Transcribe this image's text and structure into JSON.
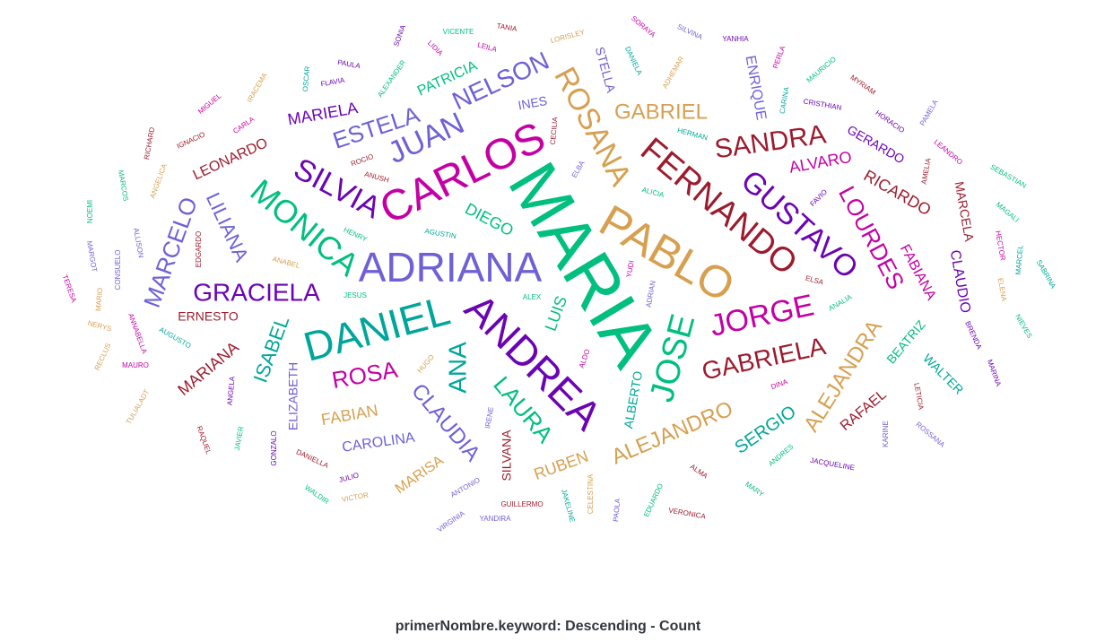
{
  "caption": "primerNombre.keyword: Descending - Count",
  "colors": {
    "green": "#00bf7f",
    "purple": "#7060d6",
    "orange": "#d6a050",
    "darkviolet": "#6b04b3",
    "teal": "#00a69b",
    "red": "#9c1c2e",
    "magenta": "#c400a4",
    "caption": "#343741"
  },
  "chart_data": {
    "type": "wordcloud",
    "field": "primerNombre.keyword",
    "order": "Descending - Count",
    "words": [
      {
        "text": "MARIA",
        "rank": 1,
        "color": "green"
      },
      {
        "text": "ADRIANA",
        "rank": 2,
        "color": "purple"
      },
      {
        "text": "PABLO",
        "rank": 3,
        "color": "orange"
      },
      {
        "text": "ANDREA",
        "rank": 4,
        "color": "darkviolet"
      },
      {
        "text": "DANIEL",
        "rank": 5,
        "color": "teal"
      },
      {
        "text": "CARLOS",
        "rank": 6,
        "color": "magenta"
      },
      {
        "text": "FERNANDO",
        "rank": 7,
        "color": "red"
      },
      {
        "text": "ROSANA",
        "rank": 8,
        "color": "orange"
      },
      {
        "text": "GUSTAVO",
        "rank": 9,
        "color": "darkviolet"
      },
      {
        "text": "MONICA",
        "rank": 10,
        "color": "green"
      },
      {
        "text": "JOSE",
        "rank": 11,
        "color": "green"
      },
      {
        "text": "SILVIA",
        "rank": 12,
        "color": "darkviolet"
      },
      {
        "text": "JUAN",
        "rank": 13,
        "color": "purple"
      },
      {
        "text": "JORGE",
        "rank": 14,
        "color": "magenta"
      },
      {
        "text": "GABRIELA",
        "rank": 15,
        "color": "red"
      },
      {
        "text": "LOURDES",
        "rank": 16,
        "color": "magenta"
      },
      {
        "text": "NELSON",
        "rank": 17,
        "color": "purple"
      },
      {
        "text": "ALEJANDRO",
        "rank": 18,
        "color": "orange"
      },
      {
        "text": "ALEJANDRA",
        "rank": 19,
        "color": "orange"
      },
      {
        "text": "SANDRA",
        "rank": 20,
        "color": "red"
      },
      {
        "text": "ESTELA",
        "rank": 21,
        "color": "purple"
      },
      {
        "text": "GRACIELA",
        "rank": 22,
        "color": "darkviolet"
      },
      {
        "text": "MARCELO",
        "rank": 23,
        "color": "purple"
      },
      {
        "text": "CLAUDIA",
        "rank": 24,
        "color": "purple"
      },
      {
        "text": "LAURA",
        "rank": 25,
        "color": "green"
      },
      {
        "text": "ROSA",
        "rank": 26,
        "color": "magenta"
      },
      {
        "text": "ANA",
        "rank": 27,
        "color": "teal"
      },
      {
        "text": "GABRIEL",
        "rank": 28,
        "color": "orange"
      },
      {
        "text": "LILIANA",
        "rank": 29,
        "color": "purple"
      },
      {
        "text": "ISABEL",
        "rank": 30,
        "color": "teal"
      },
      {
        "text": "MARIANA",
        "rank": 31,
        "color": "red"
      },
      {
        "text": "MARIELA",
        "rank": 32,
        "color": "darkviolet"
      },
      {
        "text": "PATRICIA",
        "rank": 33,
        "color": "green"
      },
      {
        "text": "RICARDO",
        "rank": 34,
        "color": "red"
      },
      {
        "text": "FABIANA",
        "rank": 35,
        "color": "magenta"
      },
      {
        "text": "MARCELA",
        "rank": 36,
        "color": "red"
      },
      {
        "text": "CLAUDIO",
        "rank": 37,
        "color": "darkviolet"
      },
      {
        "text": "ENRIQUE",
        "rank": 38,
        "color": "purple"
      },
      {
        "text": "STELLA",
        "rank": 39,
        "color": "purple"
      },
      {
        "text": "SERGIO",
        "rank": 40,
        "color": "teal"
      },
      {
        "text": "ALVARO",
        "rank": 41,
        "color": "magenta"
      },
      {
        "text": "GERARDO",
        "rank": 42,
        "color": "darkviolet"
      },
      {
        "text": "DIEGO",
        "rank": 43,
        "color": "green"
      },
      {
        "text": "LEONARDO",
        "rank": 44,
        "color": "red"
      },
      {
        "text": "FABIAN",
        "rank": 45,
        "color": "orange"
      },
      {
        "text": "RUBEN",
        "rank": 46,
        "color": "orange"
      },
      {
        "text": "CAROLINA",
        "rank": 47,
        "color": "purple"
      },
      {
        "text": "ELIZABETH",
        "rank": 48,
        "color": "purple"
      },
      {
        "text": "ALBERTO",
        "rank": 49,
        "color": "teal"
      },
      {
        "text": "MARISA",
        "rank": 50,
        "color": "orange"
      },
      {
        "text": "RAFAEL",
        "rank": 51,
        "color": "red"
      },
      {
        "text": "BEATRIZ",
        "rank": 52,
        "color": "green"
      },
      {
        "text": "WALTER",
        "rank": 53,
        "color": "teal"
      },
      {
        "text": "ERNESTO",
        "rank": 54,
        "color": "red"
      },
      {
        "text": "SILVANA",
        "rank": 55,
        "color": "red"
      },
      {
        "text": "LUIS",
        "rank": 56,
        "color": "green"
      },
      {
        "text": "INES",
        "rank": 57,
        "color": "purple"
      },
      {
        "text": "SONIA",
        "rank": 58,
        "color": "darkviolet"
      },
      {
        "text": "VICENTE",
        "rank": 59,
        "color": "green"
      },
      {
        "text": "TANIA",
        "rank": 60,
        "color": "red"
      },
      {
        "text": "SORAYA",
        "rank": 61,
        "color": "magenta"
      },
      {
        "text": "SILVINA",
        "rank": 62,
        "color": "purple"
      },
      {
        "text": "YANHIA",
        "rank": 63,
        "color": "darkviolet"
      },
      {
        "text": "LIDIA",
        "rank": 64,
        "color": "magenta"
      },
      {
        "text": "LEILA",
        "rank": 65,
        "color": "magenta"
      },
      {
        "text": "LORISLEY",
        "rank": 66,
        "color": "orange"
      },
      {
        "text": "DANIELA",
        "rank": 67,
        "color": "teal"
      },
      {
        "text": "ADHEMAR",
        "rank": 68,
        "color": "orange"
      },
      {
        "text": "PERLA",
        "rank": 69,
        "color": "magenta"
      },
      {
        "text": "PAULA",
        "rank": 70,
        "color": "darkviolet"
      },
      {
        "text": "OSCAR",
        "rank": 71,
        "color": "teal"
      },
      {
        "text": "ALEXANDER",
        "rank": 72,
        "color": "green"
      },
      {
        "text": "FLAVIA",
        "rank": 73,
        "color": "darkviolet"
      },
      {
        "text": "MAURICIO",
        "rank": 74,
        "color": "green"
      },
      {
        "text": "CARINA",
        "rank": 75,
        "color": "teal"
      },
      {
        "text": "MYRIAM",
        "rank": 76,
        "color": "red"
      },
      {
        "text": "IRACEMA",
        "rank": 77,
        "color": "orange"
      },
      {
        "text": "MIGUEL",
        "rank": 78,
        "color": "magenta"
      },
      {
        "text": "CRISTHIAN",
        "rank": 79,
        "color": "darkviolet"
      },
      {
        "text": "HORACIO",
        "rank": 80,
        "color": "darkviolet"
      },
      {
        "text": "PAMELA",
        "rank": 81,
        "color": "purple"
      },
      {
        "text": "CECILIA",
        "rank": 82,
        "color": "red"
      },
      {
        "text": "HERMAN",
        "rank": 83,
        "color": "teal"
      },
      {
        "text": "CARLA",
        "rank": 84,
        "color": "magenta"
      },
      {
        "text": "RICHARD",
        "rank": 85,
        "color": "red"
      },
      {
        "text": "IGNACIO",
        "rank": 86,
        "color": "red"
      },
      {
        "text": "LEANDRO",
        "rank": 87,
        "color": "magenta"
      },
      {
        "text": "AMELIA",
        "rank": 88,
        "color": "red"
      },
      {
        "text": "SEBASTIAN",
        "rank": 89,
        "color": "green"
      },
      {
        "text": "ROCIO",
        "rank": 90,
        "color": "red"
      },
      {
        "text": "ANUSH",
        "rank": 91,
        "color": "red"
      },
      {
        "text": "ELBA",
        "rank": 92,
        "color": "purple"
      },
      {
        "text": "ALICIA",
        "rank": 93,
        "color": "green"
      },
      {
        "text": "FAVIO",
        "rank": 94,
        "color": "darkviolet"
      },
      {
        "text": "MARCOS",
        "rank": 95,
        "color": "green"
      },
      {
        "text": "ANGELICA",
        "rank": 96,
        "color": "orange"
      },
      {
        "text": "NOEMI",
        "rank": 97,
        "color": "green"
      },
      {
        "text": "MAGALI",
        "rank": 98,
        "color": "green"
      },
      {
        "text": "HENRY",
        "rank": 99,
        "color": "green"
      },
      {
        "text": "AGUSTIN",
        "rank": 100,
        "color": "teal"
      },
      {
        "text": "HECTOR",
        "rank": 101,
        "color": "magenta"
      },
      {
        "text": "MARCEL",
        "rank": 102,
        "color": "teal"
      },
      {
        "text": "EDGARDO",
        "rank": 103,
        "color": "red"
      },
      {
        "text": "ALLISON",
        "rank": 104,
        "color": "purple"
      },
      {
        "text": "MARGOT",
        "rank": 105,
        "color": "purple"
      },
      {
        "text": "CONSUELO",
        "rank": 106,
        "color": "purple"
      },
      {
        "text": "ANABEL",
        "rank": 107,
        "color": "orange"
      },
      {
        "text": "YUDI",
        "rank": 108,
        "color": "magenta"
      },
      {
        "text": "SABRINA",
        "rank": 109,
        "color": "teal"
      },
      {
        "text": "TERESA",
        "rank": 110,
        "color": "magenta"
      },
      {
        "text": "ELSA",
        "rank": 111,
        "color": "red"
      },
      {
        "text": "ELENA",
        "rank": 112,
        "color": "orange"
      },
      {
        "text": "JESUS",
        "rank": 113,
        "color": "green"
      },
      {
        "text": "ALEX",
        "rank": 114,
        "color": "green"
      },
      {
        "text": "ADRIAN",
        "rank": 115,
        "color": "purple"
      },
      {
        "text": "ANALIA",
        "rank": 116,
        "color": "green"
      },
      {
        "text": "MARIO",
        "rank": 117,
        "color": "orange"
      },
      {
        "text": "ANNABELLA",
        "rank": 118,
        "color": "magenta"
      },
      {
        "text": "NERYS",
        "rank": 119,
        "color": "orange"
      },
      {
        "text": "NIEVES",
        "rank": 120,
        "color": "green"
      },
      {
        "text": "BRENDA",
        "rank": 121,
        "color": "darkviolet"
      },
      {
        "text": "AUGUSTO",
        "rank": 122,
        "color": "teal"
      },
      {
        "text": "RECLUS",
        "rank": 123,
        "color": "orange"
      },
      {
        "text": "MAURO",
        "rank": 124,
        "color": "magenta"
      },
      {
        "text": "ALDO",
        "rank": 125,
        "color": "magenta"
      },
      {
        "text": "HUGO",
        "rank": 126,
        "color": "orange"
      },
      {
        "text": "MARINA",
        "rank": 127,
        "color": "darkviolet"
      },
      {
        "text": "DINA",
        "rank": 128,
        "color": "magenta"
      },
      {
        "text": "ANGELA",
        "rank": 129,
        "color": "darkviolet"
      },
      {
        "text": "LETICIA",
        "rank": 130,
        "color": "red"
      },
      {
        "text": "TULIALADT",
        "rank": 131,
        "color": "orange"
      },
      {
        "text": "IRENE",
        "rank": 132,
        "color": "purple"
      },
      {
        "text": "ROSSANA",
        "rank": 133,
        "color": "purple"
      },
      {
        "text": "KARINE",
        "rank": 134,
        "color": "purple"
      },
      {
        "text": "RAQUEL",
        "rank": 135,
        "color": "red"
      },
      {
        "text": "JAVIER",
        "rank": 136,
        "color": "green"
      },
      {
        "text": "GONZALO",
        "rank": 137,
        "color": "darkviolet"
      },
      {
        "text": "ANDRES",
        "rank": 138,
        "color": "green"
      },
      {
        "text": "JACQUELINE",
        "rank": 139,
        "color": "darkviolet"
      },
      {
        "text": "DANIELLA",
        "rank": 140,
        "color": "red"
      },
      {
        "text": "ALMA",
        "rank": 141,
        "color": "red"
      },
      {
        "text": "JULIO",
        "rank": 142,
        "color": "darkviolet"
      },
      {
        "text": "ANTONIO",
        "rank": 143,
        "color": "purple"
      },
      {
        "text": "CELESTINA",
        "rank": 144,
        "color": "orange"
      },
      {
        "text": "EDUARDO",
        "rank": 145,
        "color": "green"
      },
      {
        "text": "MARY",
        "rank": 146,
        "color": "green"
      },
      {
        "text": "WALDIR",
        "rank": 147,
        "color": "green"
      },
      {
        "text": "VICTOR",
        "rank": 148,
        "color": "orange"
      },
      {
        "text": "GUILLERMO",
        "rank": 149,
        "color": "red"
      },
      {
        "text": "JAKELINE",
        "rank": 150,
        "color": "teal"
      },
      {
        "text": "PAOLA",
        "rank": 151,
        "color": "purple"
      },
      {
        "text": "VERONICA",
        "rank": 152,
        "color": "red"
      },
      {
        "text": "VIRGINIA",
        "rank": 153,
        "color": "purple"
      },
      {
        "text": "YANDIRA",
        "rank": 154,
        "color": "purple"
      }
    ]
  }
}
